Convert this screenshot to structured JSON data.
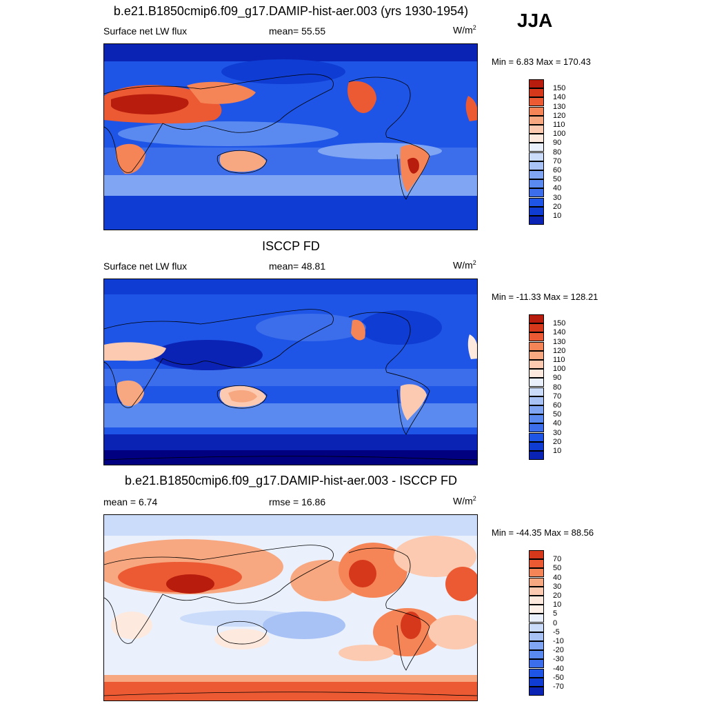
{
  "season": "JJA",
  "colors": {
    "abs_scale": [
      "#000080",
      "#0a23b4",
      "#0f3cd2",
      "#1e55e6",
      "#3c6eeb",
      "#5a8af0",
      "#80a6f3",
      "#a8c2f6",
      "#cbdcfa",
      "#eaf1fd",
      "#fde9de",
      "#fbcab0",
      "#f8a880",
      "#f58457",
      "#ec5a33",
      "#d6381c",
      "#b81c0c",
      "#8b0000"
    ],
    "diff_scale": [
      "#000080",
      "#0a23b4",
      "#0f3cd2",
      "#1e55e6",
      "#3c6eeb",
      "#5a8af0",
      "#80a6f3",
      "#a8c2f6",
      "#cbdcfa",
      "#eaf1fd",
      "#fdf1ea",
      "#fde9de",
      "#fbcab0",
      "#f8a880",
      "#f58457",
      "#ec5a33",
      "#d6381c",
      "#b81c0c",
      "#8b0000"
    ]
  },
  "panels": [
    {
      "title": "b.e21.B1850cmip6.f09_g17.DAMIP-hist-aer.003 (yrs 1930-1954)",
      "left_label": "Surface net LW flux",
      "mid_label": "mean=  55.55",
      "units_base": "W/m",
      "units_exp": "2",
      "minmax": "Min =   6.83 Max = 170.43",
      "colorbar_labels": [
        "150",
        "140",
        "130",
        "120",
        "110",
        "100",
        "90",
        "80",
        "70",
        "60",
        "50",
        "40",
        "30",
        "20",
        "10"
      ]
    },
    {
      "title": "ISCCP FD",
      "left_label": "Surface net LW flux",
      "mid_label": "mean=  48.81",
      "units_base": "W/m",
      "units_exp": "2",
      "minmax": "Min = -11.33 Max = 128.21",
      "colorbar_labels": [
        "150",
        "140",
        "130",
        "120",
        "110",
        "100",
        "90",
        "80",
        "70",
        "60",
        "50",
        "40",
        "30",
        "20",
        "10"
      ]
    },
    {
      "title": "b.e21.B1850cmip6.f09_g17.DAMIP-hist-aer.003 - ISCCP FD",
      "left_label": "mean =   6.74",
      "mid_label": "rmse =  16.86",
      "units_base": "W/m",
      "units_exp": "2",
      "minmax": "Min = -44.35 Max =  88.56",
      "colorbar_labels": [
        "70",
        "50",
        "40",
        "30",
        "20",
        "10",
        "5",
        "0",
        "-5",
        "-10",
        "-20",
        "-30",
        "-40",
        "-50",
        "-70"
      ]
    }
  ]
}
